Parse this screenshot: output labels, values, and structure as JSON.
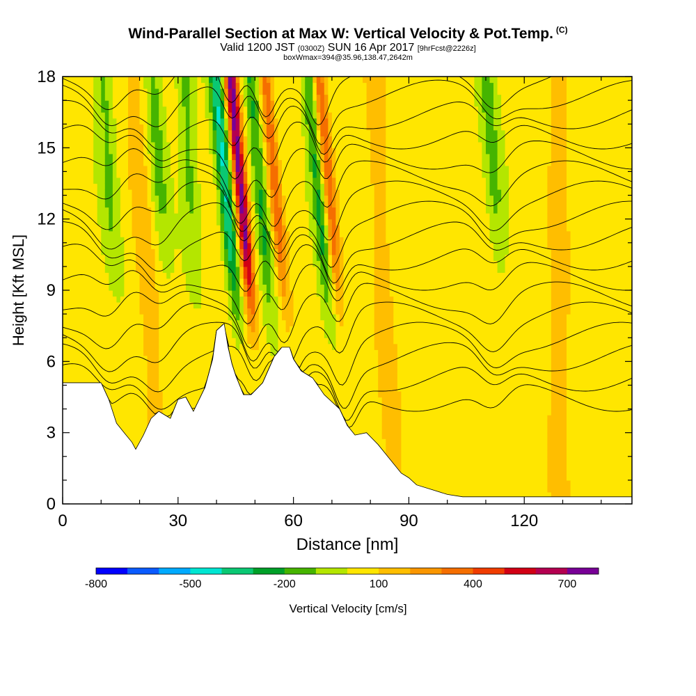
{
  "title": {
    "main": "Wind-Parallel Section at Max W: Vertical Velocity & Pot.Temp.",
    "copyright": "(C)",
    "valid_prefix": "Valid 1200 JST",
    "valid_z": "(0300Z)",
    "valid_date": "SUN 16 Apr 2017",
    "forecast": "[9hrFcst@2226z]",
    "box": "boxWmax=394@35.96,138.47,2642m"
  },
  "chart_data": {
    "type": "heatmap",
    "xlabel": "Distance [nm]",
    "ylabel": "Height [Kft MSL]",
    "xlim": [
      0,
      148
    ],
    "ylim": [
      0,
      18
    ],
    "x_ticks": [
      0,
      30,
      60,
      90,
      120
    ],
    "y_ticks": [
      0,
      3,
      6,
      9,
      12,
      15,
      18
    ],
    "colorbar": {
      "label": "Vertical Velocity [cm/s]",
      "tick_labels": [
        "-800",
        "-500",
        "-200",
        "100",
        "400",
        "700"
      ],
      "tick_values": [
        -800,
        -500,
        -200,
        100,
        400,
        700
      ],
      "levels": [
        -800,
        -700,
        -600,
        -500,
        -400,
        -300,
        -200,
        -100,
        0,
        100,
        200,
        300,
        400,
        500,
        600,
        700,
        800
      ],
      "colors": [
        "#0000ff",
        "#0a5aff",
        "#00aaff",
        "#00e6d2",
        "#0ac873",
        "#00a028",
        "#46b400",
        "#b4e600",
        "#ffe600",
        "#ffbe00",
        "#fa9600",
        "#f56e00",
        "#f03c00",
        "#d20014",
        "#b40050",
        "#780096"
      ]
    },
    "terrain_kft": [
      [
        0,
        5.1
      ],
      [
        10,
        5.1
      ],
      [
        12,
        4.4
      ],
      [
        14,
        3.4
      ],
      [
        16,
        3.0
      ],
      [
        18,
        2.6
      ],
      [
        19,
        2.3
      ],
      [
        21,
        2.9
      ],
      [
        23,
        3.6
      ],
      [
        25,
        3.9
      ],
      [
        28,
        3.6
      ],
      [
        30,
        4.4
      ],
      [
        32,
        4.5
      ],
      [
        34,
        3.9
      ],
      [
        37,
        4.9
      ],
      [
        39,
        6.1
      ],
      [
        40,
        7.3
      ],
      [
        42,
        7.6
      ],
      [
        43,
        6.6
      ],
      [
        44,
        5.9
      ],
      [
        45,
        5.4
      ],
      [
        47,
        4.6
      ],
      [
        49,
        4.6
      ],
      [
        52,
        5.1
      ],
      [
        55,
        6.2
      ],
      [
        57,
        6.6
      ],
      [
        59,
        6.6
      ],
      [
        60,
        6.1
      ],
      [
        62,
        5.6
      ],
      [
        65,
        5.3
      ],
      [
        68,
        4.6
      ],
      [
        72,
        4.0
      ],
      [
        74,
        3.3
      ],
      [
        76,
        2.9
      ],
      [
        79,
        3.0
      ],
      [
        82,
        2.5
      ],
      [
        85,
        1.9
      ],
      [
        88,
        1.3
      ],
      [
        90,
        1.1
      ],
      [
        92,
        0.8
      ],
      [
        96,
        0.6
      ],
      [
        100,
        0.4
      ],
      [
        104,
        0.3
      ],
      [
        148,
        0.3
      ]
    ],
    "positive_updraft_axes_nm": [
      47,
      56,
      70
    ],
    "negative_downdraft_axes_nm": [
      43,
      52,
      67
    ]
  }
}
